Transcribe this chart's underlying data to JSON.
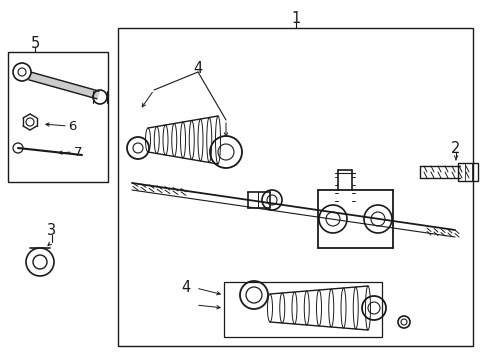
{
  "bg_color": "#ffffff",
  "line_color": "#1a1a1a",
  "fig_width": 4.89,
  "fig_height": 3.6,
  "dpi": 100,
  "label_fontsize": 10.5,
  "lw": 0.9
}
